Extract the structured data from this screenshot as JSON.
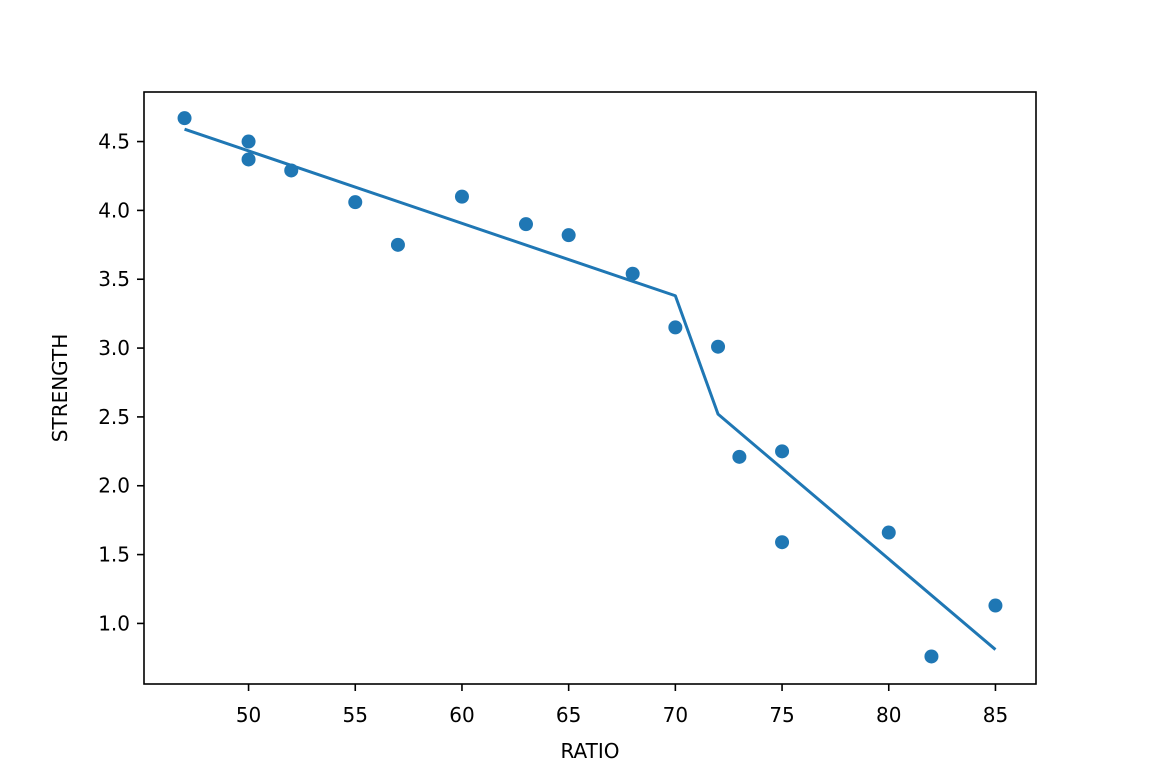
{
  "chart_data": {
    "type": "scatter",
    "xlabel": "RATIO",
    "ylabel": "STRENGTH",
    "xlim": [
      45.1,
      86.9
    ],
    "ylim": [
      0.56,
      4.86
    ],
    "x_ticks": [
      50,
      55,
      60,
      65,
      70,
      75,
      80,
      85
    ],
    "y_ticks": [
      1.0,
      1.5,
      2.0,
      2.5,
      3.0,
      3.5,
      4.0,
      4.5
    ],
    "x_tick_labels": [
      "50",
      "55",
      "60",
      "65",
      "70",
      "75",
      "80",
      "85"
    ],
    "y_tick_labels": [
      "1.0",
      "1.5",
      "2.0",
      "2.5",
      "3.0",
      "3.5",
      "4.0",
      "4.5"
    ],
    "grid": false,
    "color": "#1f77b4",
    "series": [
      {
        "type": "scatter",
        "points": [
          {
            "x": 47,
            "y": 4.67
          },
          {
            "x": 50,
            "y": 4.5
          },
          {
            "x": 50,
            "y": 4.37
          },
          {
            "x": 52,
            "y": 4.29
          },
          {
            "x": 55,
            "y": 4.06
          },
          {
            "x": 57,
            "y": 3.75
          },
          {
            "x": 60,
            "y": 4.1
          },
          {
            "x": 63,
            "y": 3.9
          },
          {
            "x": 65,
            "y": 3.82
          },
          {
            "x": 68,
            "y": 3.54
          },
          {
            "x": 70,
            "y": 3.15
          },
          {
            "x": 72,
            "y": 3.01
          },
          {
            "x": 73,
            "y": 2.21
          },
          {
            "x": 75,
            "y": 2.25
          },
          {
            "x": 75,
            "y": 1.59
          },
          {
            "x": 80,
            "y": 1.66
          },
          {
            "x": 82,
            "y": 0.76
          },
          {
            "x": 85,
            "y": 1.13
          }
        ]
      },
      {
        "type": "line",
        "points": [
          {
            "x": 47,
            "y": 4.59
          },
          {
            "x": 70,
            "y": 3.38
          },
          {
            "x": 72,
            "y": 2.52
          },
          {
            "x": 85,
            "y": 0.81
          }
        ]
      }
    ]
  }
}
